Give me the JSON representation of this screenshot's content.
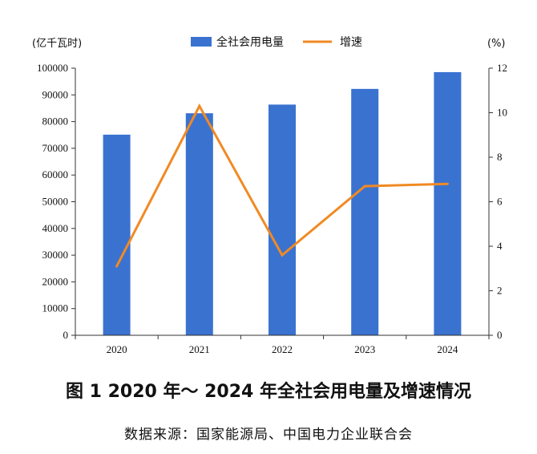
{
  "chart_data": {
    "type": "bar",
    "categories": [
      "2020",
      "2021",
      "2022",
      "2023",
      "2024"
    ],
    "series": [
      {
        "name": "全社会用电量",
        "type": "bar",
        "axis": "left",
        "color": "#3a72d0",
        "values": [
          75110,
          83128,
          86372,
          92241,
          98521
        ]
      },
      {
        "name": "增速",
        "type": "line",
        "axis": "right",
        "color": "#f08a24",
        "values": [
          3.1,
          10.3,
          3.6,
          6.7,
          6.8
        ]
      }
    ],
    "ylabel": "(亿千瓦时)",
    "ylabel_right": "(%)",
    "ylim": [
      0,
      100000
    ],
    "ylim_right": [
      0,
      12
    ],
    "yticks": [
      "0",
      "10000",
      "20000",
      "30000",
      "40000",
      "50000",
      "60000",
      "70000",
      "80000",
      "90000",
      "100000"
    ],
    "yticks_right": [
      "0",
      "2",
      "4",
      "6",
      "8",
      "10",
      "12"
    ],
    "legend_position": "top-center",
    "grid": false
  },
  "caption": "图 1 2020 年～ 2024 年全社会用电量及增速情况",
  "source": "数据来源：国家能源局、中国电力企业联合会"
}
